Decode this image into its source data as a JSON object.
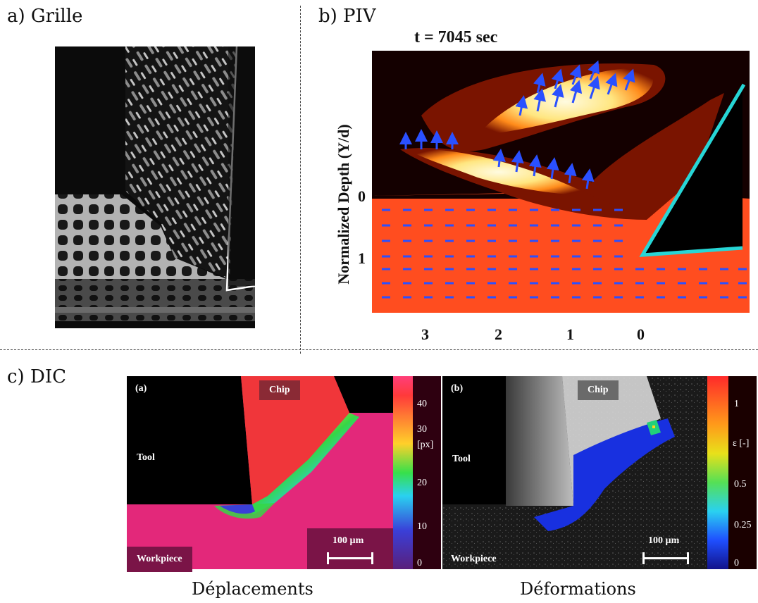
{
  "panels": {
    "a": {
      "label": "a) Grille"
    },
    "b": {
      "label": "b) PIV",
      "title": "t = 7045 sec",
      "ylabel": "Normalized Depth (Y/d)",
      "yticks": [
        "0",
        "1"
      ],
      "xticks": [
        "3",
        "2",
        "1",
        "0"
      ]
    },
    "c": {
      "label": "c) DIC",
      "left": {
        "tag": "(a)",
        "chip": "Chip",
        "tool": "Tool",
        "workpiece": "Workpiece",
        "scale": "100 µm",
        "unit": "[px]",
        "ticks": [
          "40",
          "30",
          "20",
          "10",
          "0"
        ],
        "caption": "Déplacements"
      },
      "right": {
        "tag": "(b)",
        "chip": "Chip",
        "tool": "Tool",
        "workpiece": "Workpiece",
        "scale": "100 µm",
        "unit": "ε [-]",
        "ticks": [
          "1",
          "0.5",
          "0.25",
          "0"
        ],
        "caption": "Déformations"
      }
    }
  },
  "colors": {
    "tool_line": "#27d6d6",
    "piv_vector": "#2a50ff",
    "workpiece_red": "#ff4d1f",
    "disp_magenta": "#e3287a"
  }
}
